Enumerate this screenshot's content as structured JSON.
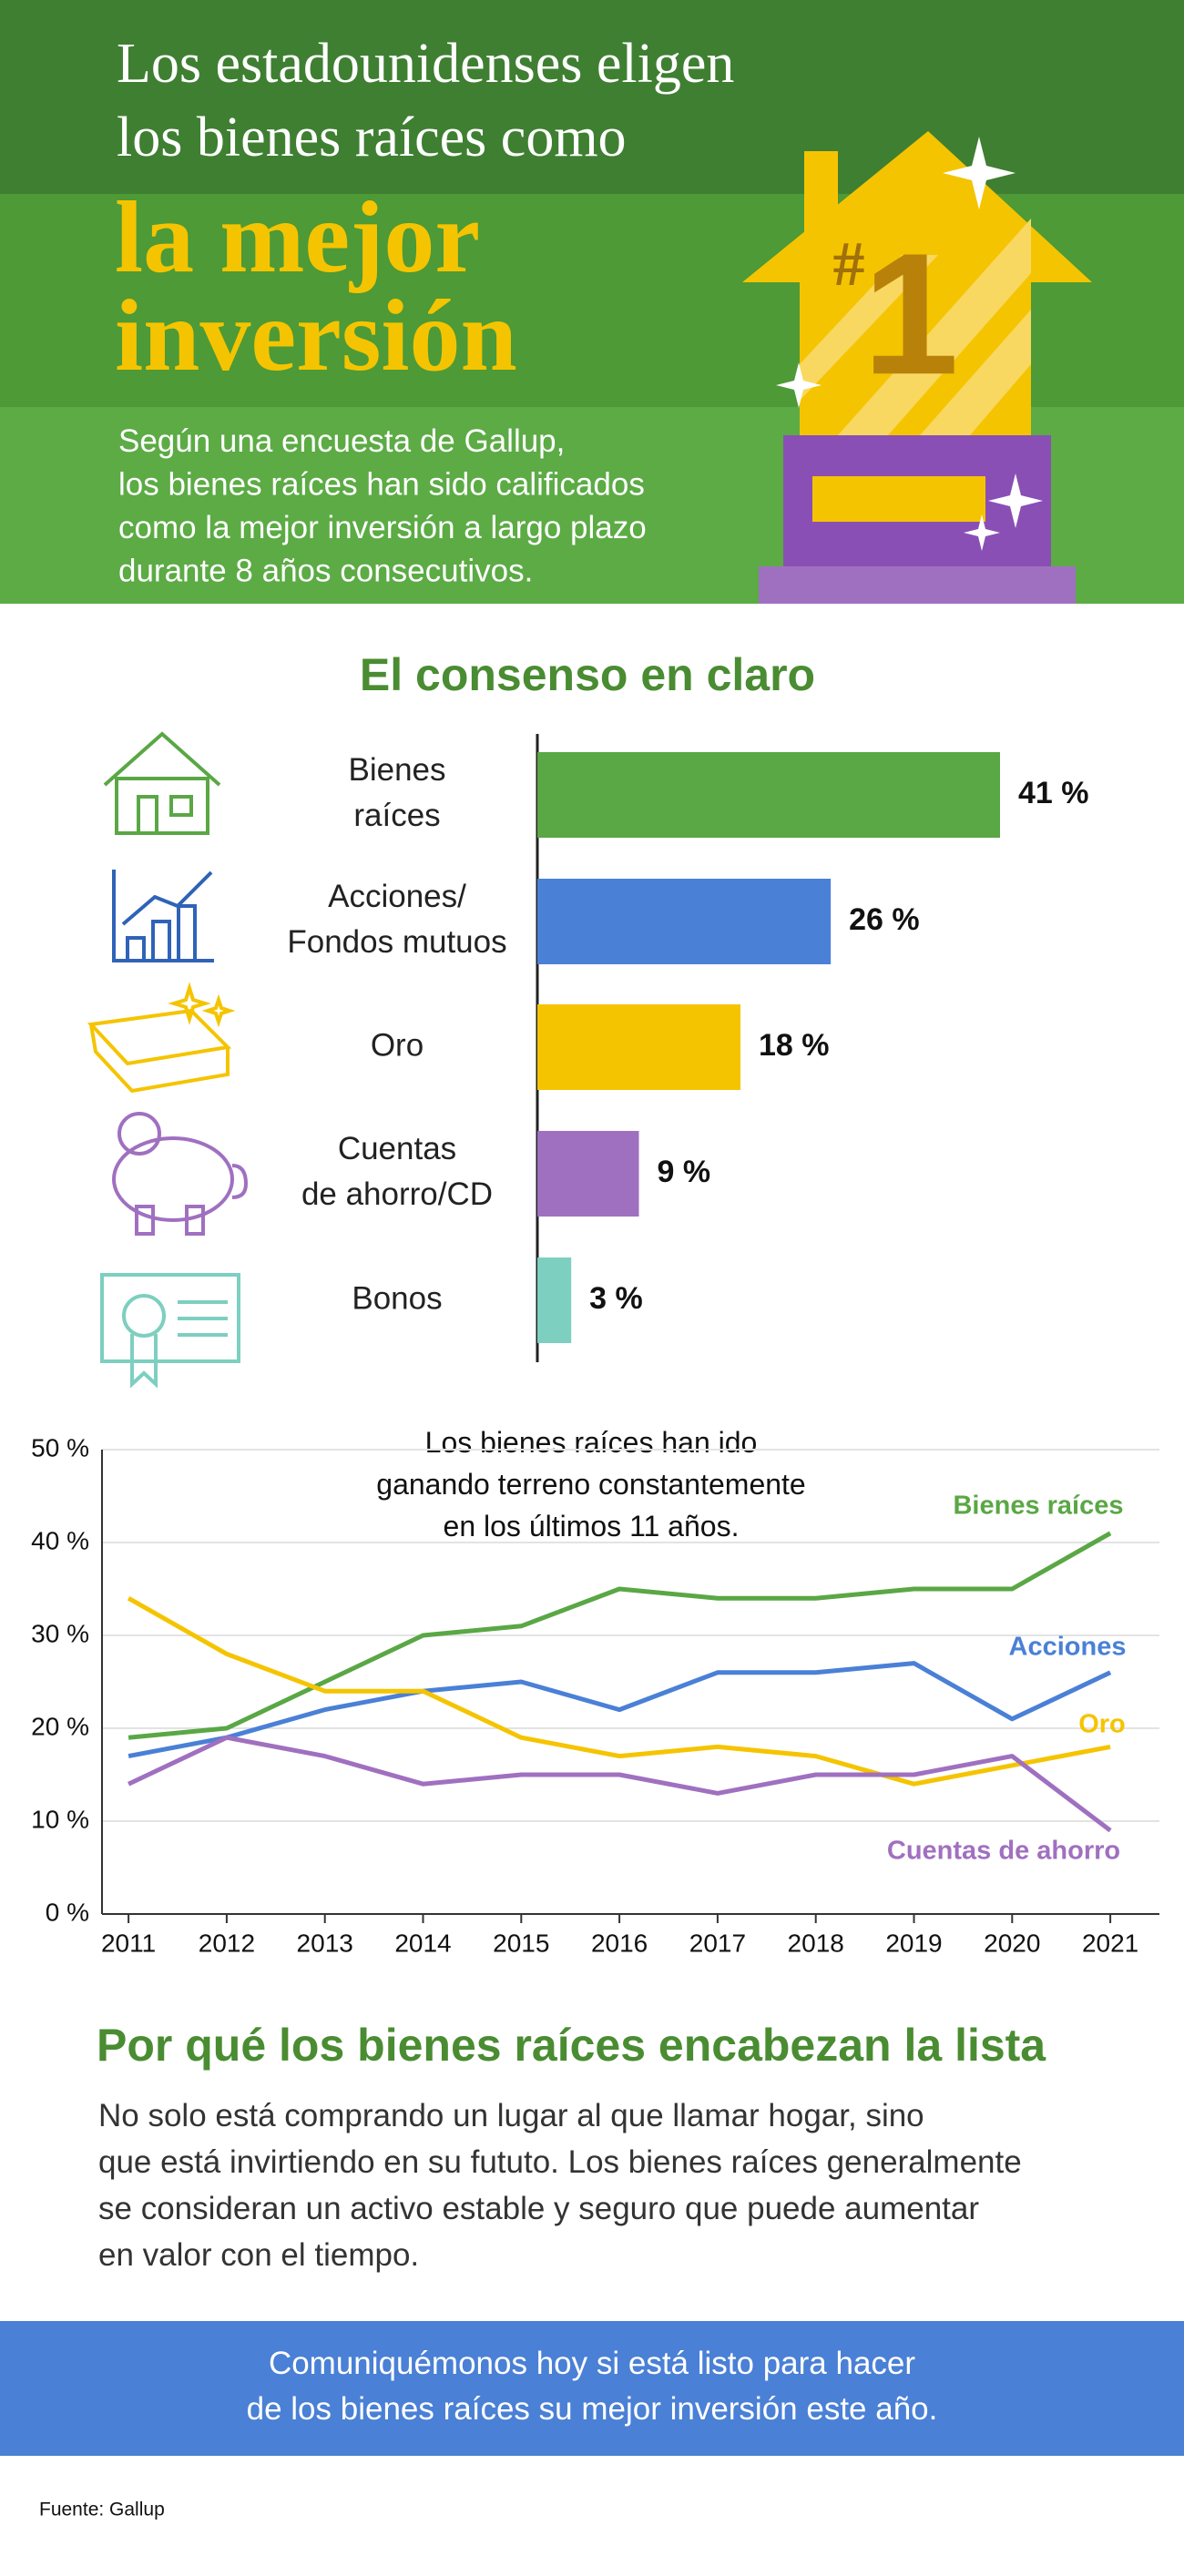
{
  "header": {
    "title": "Los estadounidenses eligen\nlos bienes raíces como",
    "highlight": "la mejor\ninversión",
    "subtitle": "Según una encuesta de Gallup,\nlos bienes raíces han sido calificados\ncomo la mejor inversión a largo plazo\ndurante 8 años consecutivos.",
    "badge_symbol": "#",
    "badge_number": "1"
  },
  "chart_data": [
    {
      "type": "hbar",
      "title": "El consenso en claro",
      "categories": [
        "Bienes\nraíces",
        "Acciones/\nFondos mutuos",
        "Oro",
        "Cuentas\nde ahorro/CD",
        "Bonos"
      ],
      "values": [
        41,
        26,
        18,
        9,
        3
      ],
      "value_labels": [
        "41 %",
        "26 %",
        "18 %",
        "9 %",
        "3 %"
      ],
      "colors": [
        "#5aa745",
        "#4a80d6",
        "#f5c400",
        "#a070c0",
        "#7dcfc0"
      ]
    },
    {
      "type": "line",
      "annotation": "Los bienes raíces han ido\nganando terreno constantemente\nen los últimos 11 años.",
      "x": [
        2011,
        2012,
        2013,
        2014,
        2015,
        2016,
        2017,
        2018,
        2019,
        2020,
        2021
      ],
      "xlim": [
        2010.73,
        2021.5
      ],
      "xticks": [
        2011,
        2012,
        2013,
        2014,
        2015,
        2016,
        2017,
        2018,
        2019,
        2020,
        2021
      ],
      "ylim": [
        0,
        50
      ],
      "yticks": [
        {
          "value": 0,
          "label": "0 %"
        },
        {
          "value": 10,
          "label": "10 %"
        },
        {
          "value": 20,
          "label": "20 %"
        },
        {
          "value": 30,
          "label": "30 %"
        },
        {
          "value": 40,
          "label": "40 %"
        },
        {
          "value": 50,
          "label": "50 %"
        }
      ],
      "grid": true,
      "series": [
        {
          "name": "Bienes raíces",
          "color": "#5aa745",
          "values": [
            19,
            20,
            25,
            30,
            31,
            35,
            34,
            34,
            35,
            35,
            41
          ]
        },
        {
          "name": "Acciones",
          "color": "#4a80d6",
          "values": [
            17,
            19,
            22,
            24,
            25,
            22,
            26,
            26,
            27,
            21,
            26
          ]
        },
        {
          "name": "Oro",
          "color": "#f5c400",
          "values": [
            34,
            28,
            24,
            24,
            19,
            17,
            18,
            17,
            14,
            16,
            18
          ]
        },
        {
          "name": "Cuentas de ahorro",
          "color": "#a070c0",
          "values": [
            14,
            19,
            17,
            14,
            15,
            15,
            13,
            15,
            15,
            17,
            9
          ]
        }
      ]
    }
  ],
  "section": {
    "heading": "Por qué los bienes raíces encabezan la lista",
    "body": "No solo está comprando un lugar al que llamar hogar, sino\nque está invirtiendo en su fututo. Los bienes raíces generalmente\nse consideran un activo estable y seguro que puede aumentar\nen valor con el tiempo."
  },
  "cta": "Comuniquémonos hoy si está listo para hacer\nde los bienes raíces su mejor inversión este año.",
  "source": "Fuente: Gallup"
}
